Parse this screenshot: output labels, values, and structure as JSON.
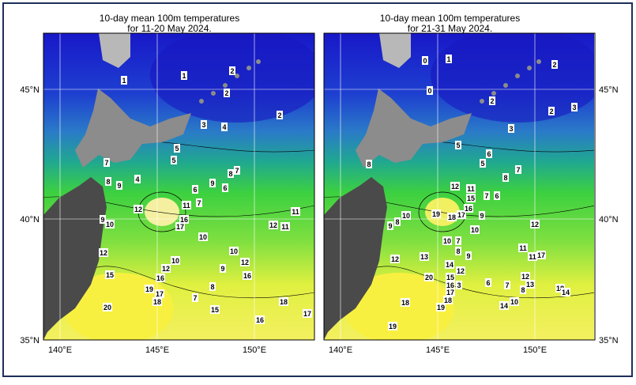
{
  "panels": [
    {
      "title_line1": "10-day mean 100m temperatures",
      "title_line2": "for 11-20 May 2024.",
      "contour_labels": [
        1,
        1,
        2,
        2,
        2,
        3,
        4,
        5,
        5,
        7,
        8,
        9,
        4,
        9,
        8,
        7,
        6,
        6,
        7,
        11,
        12,
        9,
        10,
        16,
        17,
        10,
        11,
        12,
        11,
        12,
        10,
        12,
        10,
        12,
        9,
        16,
        15,
        16,
        19,
        17,
        18,
        8,
        7,
        20,
        15,
        18,
        16,
        17
      ]
    },
    {
      "title_line1": "10-day mean 100m temperatures",
      "title_line2": "for 21-31 May 2024.",
      "contour_labels": [
        0,
        1,
        0,
        2,
        2,
        2,
        3,
        3,
        5,
        6,
        5,
        8,
        7,
        8,
        12,
        11,
        15,
        7,
        6,
        19,
        18,
        17,
        16,
        10,
        9,
        8,
        9,
        10,
        12,
        10,
        7,
        8,
        9,
        11,
        11,
        17,
        12,
        13,
        14,
        12,
        20,
        15,
        16,
        3,
        6,
        7,
        12,
        13,
        8,
        18,
        14,
        17,
        18,
        19,
        18,
        14,
        10,
        19
      ]
    }
  ],
  "lat_labels": [
    "45°N",
    "40°N",
    "35°N"
  ],
  "lon_labels": [
    "140°E",
    "145°E",
    "150°E"
  ]
}
